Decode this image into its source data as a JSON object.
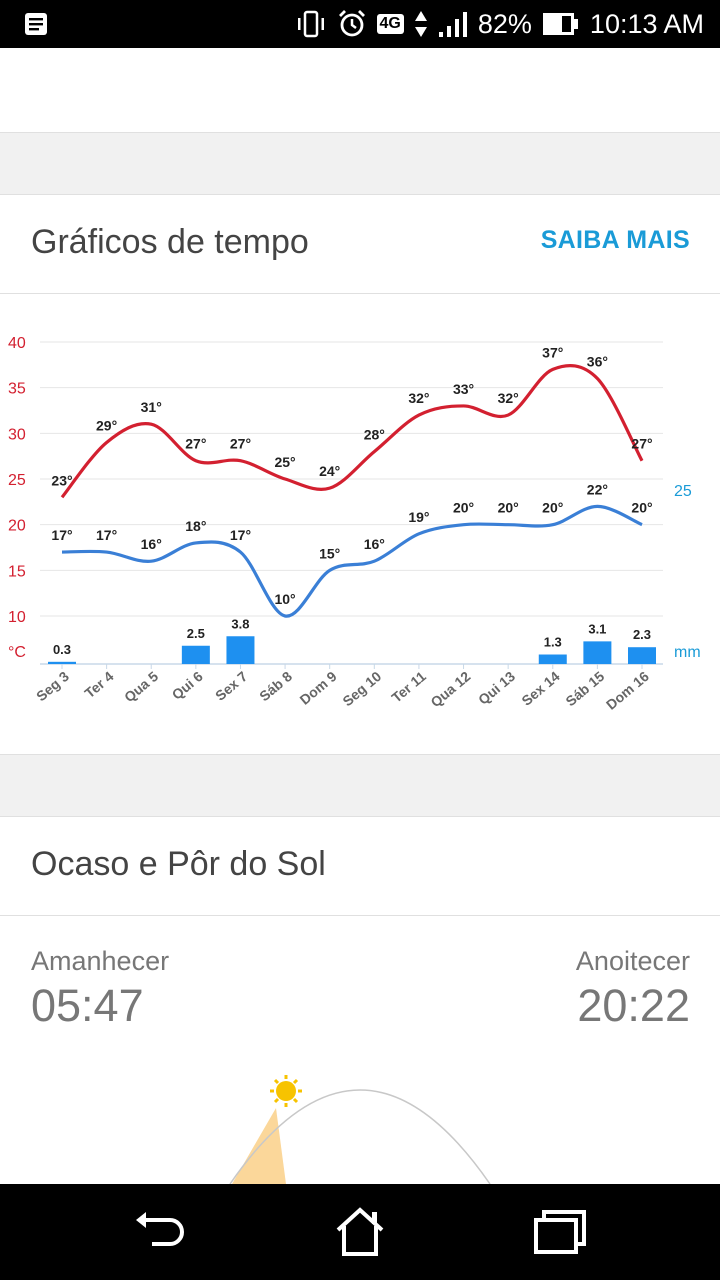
{
  "status_bar": {
    "network": "4G",
    "battery": "82%",
    "time": "10:13 AM",
    "icons": [
      "notification-icon",
      "vibrate-icon",
      "alarm-icon",
      "data-arrows-icon",
      "signal-icon",
      "battery-icon"
    ]
  },
  "weather_charts": {
    "title": "Gráficos de tempo",
    "more_label": "SAIBA MAIS"
  },
  "chart_data": {
    "type": "line",
    "categories": [
      "Seg 3",
      "Ter 4",
      "Qua 5",
      "Qui 6",
      "Sex 7",
      "Sáb 8",
      "Dom 9",
      "Seg 10",
      "Ter 11",
      "Qua 12",
      "Qui 13",
      "Sex 14",
      "Sáb 15",
      "Dom 16"
    ],
    "series": [
      {
        "values": [
          23,
          29,
          31,
          27,
          27,
          25,
          24,
          28,
          32,
          33,
          32,
          37,
          36,
          27
        ],
        "labels": [
          "23°",
          "29°",
          "31°",
          "27°",
          "27°",
          "25°",
          "24°",
          "28°",
          "32°",
          "33°",
          "32°",
          "37°",
          "36°",
          "27°"
        ],
        "color": "#d32030"
      },
      {
        "values": [
          17,
          17,
          16,
          18,
          17,
          10,
          15,
          16,
          19,
          20,
          20,
          20,
          22,
          20
        ],
        "labels": [
          "17°",
          "17°",
          "16°",
          "18°",
          "17°",
          "10°",
          "15°",
          "16°",
          "19°",
          "20°",
          "20°",
          "20°",
          "22°",
          "20°"
        ],
        "color": "#3a7fd6"
      }
    ],
    "precipitation": {
      "values": [
        0.3,
        null,
        null,
        2.5,
        3.8,
        null,
        null,
        null,
        null,
        null,
        null,
        1.3,
        3.1,
        2.3
      ],
      "labels": [
        "0.3",
        "",
        "",
        "2.5",
        "3.8",
        "",
        "",
        "",
        "",
        "",
        "",
        "1.3",
        "3.1",
        "2.3"
      ],
      "color": "#1e90f0",
      "unit": "mm",
      "max_label": "25"
    },
    "ylim": [
      7.5,
      40
    ],
    "yticks": [
      "40",
      "35",
      "30",
      "25",
      "20",
      "15",
      "10"
    ],
    "yunit": "°C",
    "ytick_color": "#d32030",
    "right_color": "#1a9bd7",
    "grid": true
  },
  "sun": {
    "title": "Ocaso e Pôr do Sol",
    "sunrise_label": "Amanhecer",
    "sunrise_time": "05:47",
    "sunset_label": "Anoitecer",
    "sunset_time": "20:22"
  },
  "nav": {
    "buttons": [
      "back-icon",
      "home-icon",
      "recents-icon"
    ]
  }
}
